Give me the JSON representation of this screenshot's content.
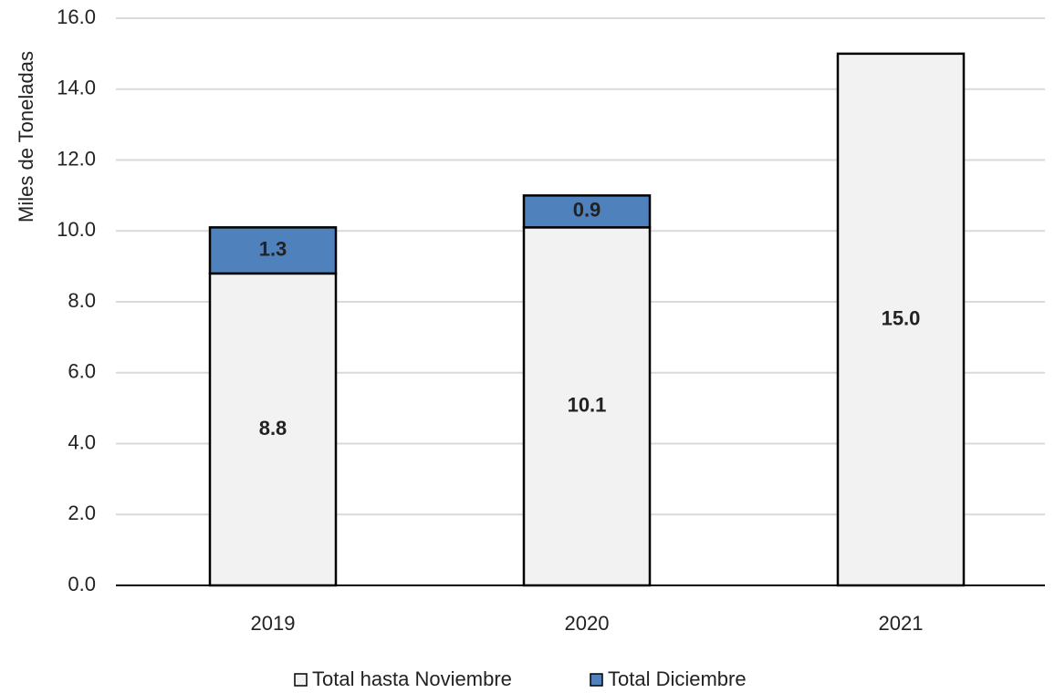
{
  "chart_data": {
    "type": "stacked_bar",
    "y_label": "Miles de Toneladas",
    "categories": [
      "2019",
      "2020",
      "2021"
    ],
    "series": [
      {
        "name": "Total hasta Noviembre",
        "color": "#f2f2f2",
        "label_color": "#000000",
        "values": [
          8.8,
          10.1,
          15.0
        ],
        "value_labels": [
          "8.8",
          "10.1",
          "15.0"
        ]
      },
      {
        "name": "Total Diciembre",
        "color": "#4f81bd",
        "label_color": "#ffffff",
        "values": [
          1.3,
          0.9,
          null
        ],
        "value_labels": [
          "1.3",
          "0.9",
          null
        ]
      }
    ],
    "ylim": [
      0,
      16
    ],
    "yticks": [
      {
        "value": 0,
        "label": "0.0"
      },
      {
        "value": 2,
        "label": "2.0"
      },
      {
        "value": 4,
        "label": "4.0"
      },
      {
        "value": 6,
        "label": "6.0"
      },
      {
        "value": 8,
        "label": "8.0"
      },
      {
        "value": 10,
        "label": "10.0"
      },
      {
        "value": 12,
        "label": "12.0"
      },
      {
        "value": 14,
        "label": "14.0"
      },
      {
        "value": 16,
        "label": "16.0"
      }
    ],
    "grid": true
  }
}
